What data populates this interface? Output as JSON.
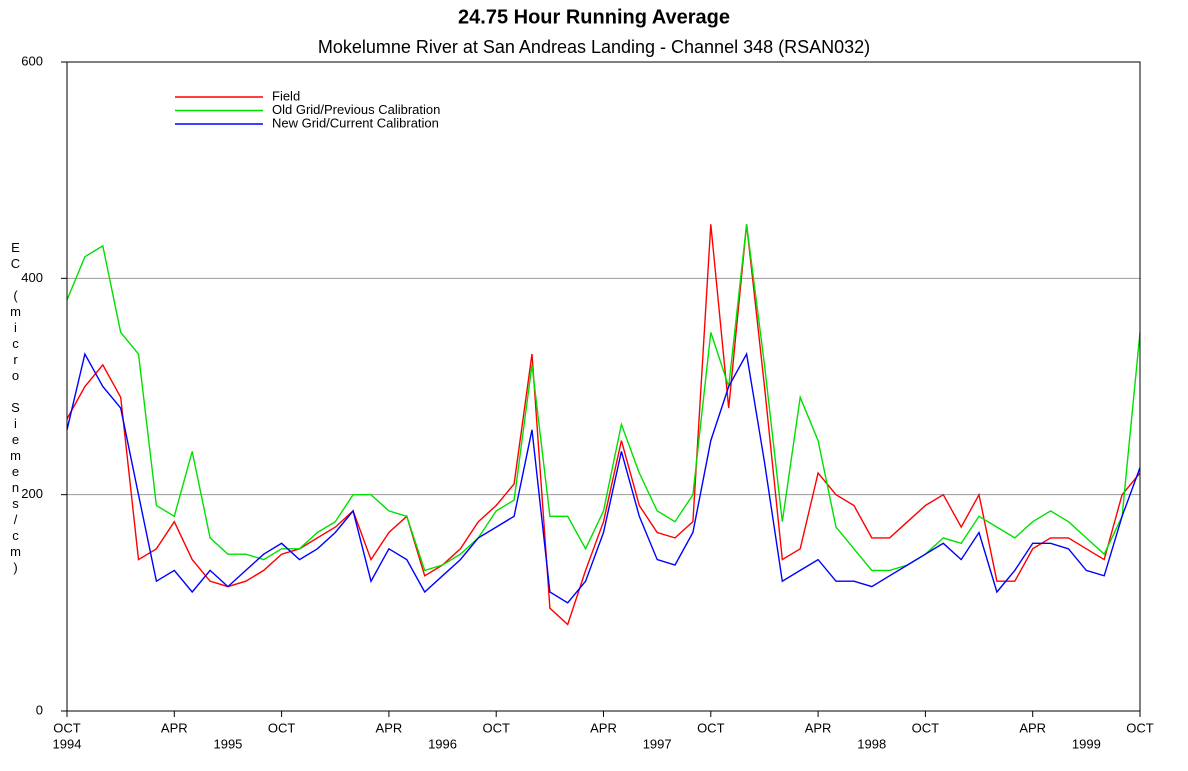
{
  "chart_data": {
    "type": "line",
    "title": "24.75 Hour Running Average",
    "subtitle": "Mokelumne River at San Andreas Landing - Channel 348 (RSAN032)",
    "y_label": "EC (micro Siemens/cm)",
    "x": [
      "1994-10",
      "1994-11",
      "1994-12",
      "1995-01",
      "1995-02",
      "1995-03",
      "1995-04",
      "1995-05",
      "1995-06",
      "1995-07",
      "1995-08",
      "1995-09",
      "1995-10",
      "1995-11",
      "1995-12",
      "1996-01",
      "1996-02",
      "1996-03",
      "1996-04",
      "1996-05",
      "1996-06",
      "1996-07",
      "1996-08",
      "1996-09",
      "1996-10",
      "1996-11",
      "1996-12",
      "1997-01",
      "1997-02",
      "1997-03",
      "1997-04",
      "1997-05",
      "1997-06",
      "1997-07",
      "1997-08",
      "1997-09",
      "1997-10",
      "1997-11",
      "1997-12",
      "1998-01",
      "1998-02",
      "1998-03",
      "1998-04",
      "1998-05",
      "1998-06",
      "1998-07",
      "1998-08",
      "1998-09",
      "1998-10",
      "1998-11",
      "1998-12",
      "1999-01",
      "1999-02",
      "1999-03",
      "1999-04",
      "1999-05",
      "1999-06",
      "1999-07",
      "1999-08",
      "1999-09",
      "1999-10"
    ],
    "series": [
      {
        "name": "Field",
        "color": "#ff0000",
        "values": [
          270,
          300,
          320,
          290,
          140,
          150,
          175,
          140,
          120,
          115,
          120,
          130,
          145,
          150,
          160,
          170,
          185,
          140,
          165,
          180,
          125,
          135,
          150,
          175,
          190,
          210,
          330,
          95,
          80,
          130,
          175,
          250,
          190,
          165,
          160,
          175,
          450,
          280,
          450,
          300,
          140,
          150,
          220,
          200,
          190,
          160,
          160,
          175,
          190,
          200,
          170,
          200,
          120,
          120,
          150,
          160,
          160,
          150,
          140,
          200,
          220
        ]
      },
      {
        "name": "Old Grid/Previous Calibration",
        "color": "#00e000",
        "values": [
          380,
          420,
          430,
          350,
          330,
          190,
          180,
          240,
          160,
          145,
          145,
          140,
          150,
          150,
          165,
          175,
          200,
          200,
          185,
          180,
          130,
          135,
          145,
          160,
          185,
          195,
          320,
          180,
          180,
          150,
          185,
          265,
          220,
          185,
          175,
          200,
          350,
          300,
          450,
          320,
          175,
          290,
          250,
          170,
          150,
          130,
          130,
          135,
          145,
          160,
          155,
          180,
          170,
          160,
          175,
          185,
          175,
          160,
          145,
          180,
          350
        ]
      },
      {
        "name": "New Grid/Current Calibration",
        "color": "#0000ff",
        "values": [
          260,
          330,
          300,
          280,
          200,
          120,
          130,
          110,
          130,
          115,
          130,
          145,
          155,
          140,
          150,
          165,
          185,
          120,
          150,
          140,
          110,
          125,
          140,
          160,
          170,
          180,
          260,
          110,
          100,
          120,
          165,
          240,
          180,
          140,
          135,
          165,
          250,
          300,
          330,
          230,
          120,
          130,
          140,
          120,
          120,
          115,
          125,
          135,
          145,
          155,
          140,
          165,
          110,
          130,
          155,
          155,
          150,
          130,
          125,
          180,
          225
        ]
      }
    ],
    "xlim": [
      "1994-10",
      "1999-10"
    ],
    "xticks": [
      {
        "value": "1994-10",
        "label": "OCT"
      },
      {
        "value": "1995-04",
        "label": "APR"
      },
      {
        "value": "1995-10",
        "label": "OCT"
      },
      {
        "value": "1996-04",
        "label": "APR"
      },
      {
        "value": "1996-10",
        "label": "OCT"
      },
      {
        "value": "1997-04",
        "label": "APR"
      },
      {
        "value": "1997-10",
        "label": "OCT"
      },
      {
        "value": "1998-04",
        "label": "APR"
      },
      {
        "value": "1998-10",
        "label": "OCT"
      },
      {
        "value": "1999-04",
        "label": "APR"
      },
      {
        "value": "1999-10",
        "label": "OCT"
      }
    ],
    "x_year_labels": [
      {
        "value": "1994-10",
        "label": "1994"
      },
      {
        "value": "1995-07",
        "label": "1995"
      },
      {
        "value": "1996-07",
        "label": "1996"
      },
      {
        "value": "1997-07",
        "label": "1997"
      },
      {
        "value": "1998-07",
        "label": "1998"
      },
      {
        "value": "1999-07",
        "label": "1999"
      }
    ],
    "ylim": [
      0,
      600
    ],
    "yticks": [
      0,
      200,
      400,
      600
    ],
    "grid": true,
    "legend": "upper left"
  }
}
